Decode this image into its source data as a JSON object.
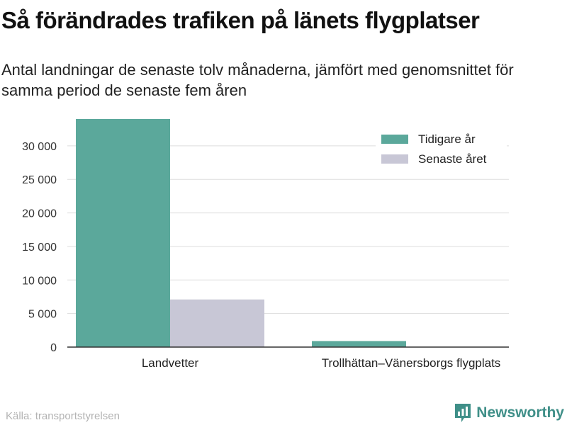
{
  "title": "Så förändrades trafiken på länets flygplatser",
  "subtitle": "Antal landningar de senaste tolv månaderna, jämfört med genomsnittet för samma period de senaste fem åren",
  "source": "Källa: transportstyrelsen",
  "brand": "Newsworthy",
  "colors": {
    "previous": "#5ba89b",
    "latest": "#c8c7d6",
    "grid": "#dddddd",
    "axis": "#333333",
    "brand": "#3f8f88"
  },
  "chart_data": {
    "type": "bar",
    "categories": [
      "Landvetter",
      "Trollhättan–Vänersborgs flygplats"
    ],
    "series": [
      {
        "name": "Tidigare år",
        "values": [
          34000,
          900
        ]
      },
      {
        "name": "Senaste året",
        "values": [
          7100,
          0
        ]
      }
    ],
    "ylim": [
      0,
      34000
    ],
    "yticks": [
      0,
      5000,
      10000,
      15000,
      20000,
      25000,
      30000
    ],
    "ytick_labels": [
      "0",
      "5 000",
      "10 000",
      "15 000",
      "20 000",
      "25 000",
      "30 000"
    ],
    "grid": true,
    "legend_position": "top-right"
  }
}
